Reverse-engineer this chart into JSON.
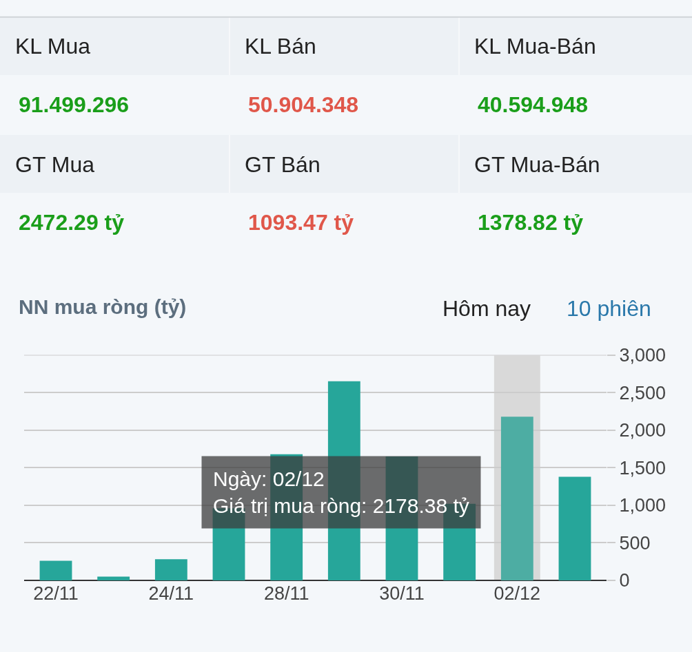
{
  "chart_data": [
    {
      "type": "other",
      "categories": [
        "KL Mua",
        "KL Bán",
        "KL Mua-Bán",
        "GT Mua",
        "GT Bán",
        "GT Mua-Bán"
      ],
      "value_labels": [
        "91.499.296",
        "50.904.348",
        "40.594.948",
        "2472.29 tỷ",
        "1093.47 tỷ",
        "1378.82 tỷ"
      ]
    },
    {
      "type": "bar",
      "title": "NN mua ròng (tỷ)",
      "annotations": [
        "Hôm nay",
        "10 phiên",
        "Ngày: 02/12\nGiá trị mua ròng: 2178.38 tỷ"
      ],
      "categories": [
        "22/11",
        null,
        "24/11",
        null,
        "28/11",
        null,
        "30/11",
        null,
        "02/12",
        null
      ],
      "values": [
        260,
        50,
        280,
        960,
        1680,
        2650,
        1650,
        1020,
        2178.38,
        1378.82
      ],
      "colors": [
        "#26a69a",
        "#26a69a",
        "#26a69a",
        "#26a69a",
        "#26a69a",
        "#26a69a",
        "#26a69a",
        "#26a69a",
        "#4dada3",
        "#26a69a"
      ],
      "ylim": [
        0,
        3000
      ],
      "yticks": [
        0,
        {
          "value": 500,
          "label": "500"
        },
        {
          "value": 1000,
          "label": "1,000"
        },
        {
          "value": 1500,
          "label": "1,500"
        },
        {
          "value": 2000,
          "label": "2,000"
        },
        {
          "value": 2500,
          "label": "2,500"
        },
        {
          "value": 3000,
          "label": "3,000"
        }
      ],
      "bands": [
        {
          "axis": "x",
          "from": "02/12",
          "to": "02/12",
          "color": "#d9d9d9"
        }
      ],
      "grid": "y"
    }
  ]
}
